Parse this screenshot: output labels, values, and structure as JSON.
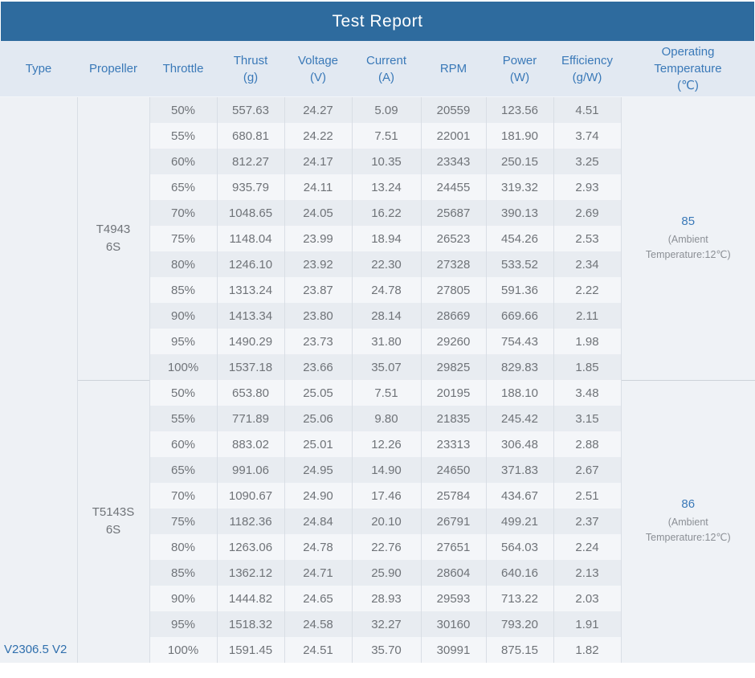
{
  "title": "Test Report",
  "version_label": "V2306.5 V2",
  "colors": {
    "title_bar_bg": "#2e6b9e",
    "header_bg": "#e2e9f2",
    "header_text": "#3a79b8",
    "row_dark": "#e8ecf1",
    "row_light": "#f4f6f9",
    "merged_cell_bg": "#eef1f5",
    "data_text": "#6f7378",
    "accent_blue": "#3a79b8",
    "note_text": "#8b8f95"
  },
  "columns": [
    {
      "id": "type",
      "lines": [
        "Type"
      ]
    },
    {
      "id": "propeller",
      "lines": [
        "Propeller"
      ]
    },
    {
      "id": "throttle",
      "lines": [
        "Throttle"
      ]
    },
    {
      "id": "thrust",
      "lines": [
        "Thrust",
        "(g)"
      ]
    },
    {
      "id": "voltage",
      "lines": [
        "Voltage",
        "(V)"
      ]
    },
    {
      "id": "current",
      "lines": [
        "Current",
        "(A)"
      ]
    },
    {
      "id": "rpm",
      "lines": [
        "RPM"
      ]
    },
    {
      "id": "power",
      "lines": [
        "Power",
        "(W)"
      ]
    },
    {
      "id": "efficiency",
      "lines": [
        "Efficiency",
        "(g/W)"
      ]
    },
    {
      "id": "operating-temperature",
      "lines": [
        "Operating",
        "Temperature",
        "(℃)"
      ]
    }
  ],
  "groups": [
    {
      "propeller": "T4943",
      "battery": "6S",
      "operating_temperature": "85",
      "ambient_note": "(Ambient Temperature:12℃)",
      "rows": [
        {
          "throttle": "50%",
          "thrust": "557.63",
          "voltage": "24.27",
          "current": "5.09",
          "rpm": "20559",
          "power": "123.56",
          "efficiency": "4.51"
        },
        {
          "throttle": "55%",
          "thrust": "680.81",
          "voltage": "24.22",
          "current": "7.51",
          "rpm": "22001",
          "power": "181.90",
          "efficiency": "3.74"
        },
        {
          "throttle": "60%",
          "thrust": "812.27",
          "voltage": "24.17",
          "current": "10.35",
          "rpm": "23343",
          "power": "250.15",
          "efficiency": "3.25"
        },
        {
          "throttle": "65%",
          "thrust": "935.79",
          "voltage": "24.11",
          "current": "13.24",
          "rpm": "24455",
          "power": "319.32",
          "efficiency": "2.93"
        },
        {
          "throttle": "70%",
          "thrust": "1048.65",
          "voltage": "24.05",
          "current": "16.22",
          "rpm": "25687",
          "power": "390.13",
          "efficiency": "2.69"
        },
        {
          "throttle": "75%",
          "thrust": "1148.04",
          "voltage": "23.99",
          "current": "18.94",
          "rpm": "26523",
          "power": "454.26",
          "efficiency": "2.53"
        },
        {
          "throttle": "80%",
          "thrust": "1246.10",
          "voltage": "23.92",
          "current": "22.30",
          "rpm": "27328",
          "power": "533.52",
          "efficiency": "2.34"
        },
        {
          "throttle": "85%",
          "thrust": "1313.24",
          "voltage": "23.87",
          "current": "24.78",
          "rpm": "27805",
          "power": "591.36",
          "efficiency": "2.22"
        },
        {
          "throttle": "90%",
          "thrust": "1413.34",
          "voltage": "23.80",
          "current": "28.14",
          "rpm": "28669",
          "power": "669.66",
          "efficiency": "2.11"
        },
        {
          "throttle": "95%",
          "thrust": "1490.29",
          "voltage": "23.73",
          "current": "31.80",
          "rpm": "29260",
          "power": "754.43",
          "efficiency": "1.98"
        },
        {
          "throttle": "100%",
          "thrust": "1537.18",
          "voltage": "23.66",
          "current": "35.07",
          "rpm": "29825",
          "power": "829.83",
          "efficiency": "1.85"
        }
      ]
    },
    {
      "propeller": "T5143S",
      "battery": "6S",
      "operating_temperature": "86",
      "ambient_note": "(Ambient Temperature:12℃)",
      "rows": [
        {
          "throttle": "50%",
          "thrust": "653.80",
          "voltage": "25.05",
          "current": "7.51",
          "rpm": "20195",
          "power": "188.10",
          "efficiency": "3.48"
        },
        {
          "throttle": "55%",
          "thrust": "771.89",
          "voltage": "25.06",
          "current": "9.80",
          "rpm": "21835",
          "power": "245.42",
          "efficiency": "3.15"
        },
        {
          "throttle": "60%",
          "thrust": "883.02",
          "voltage": "25.01",
          "current": "12.26",
          "rpm": "23313",
          "power": "306.48",
          "efficiency": "2.88"
        },
        {
          "throttle": "65%",
          "thrust": "991.06",
          "voltage": "24.95",
          "current": "14.90",
          "rpm": "24650",
          "power": "371.83",
          "efficiency": "2.67"
        },
        {
          "throttle": "70%",
          "thrust": "1090.67",
          "voltage": "24.90",
          "current": "17.46",
          "rpm": "25784",
          "power": "434.67",
          "efficiency": "2.51"
        },
        {
          "throttle": "75%",
          "thrust": "1182.36",
          "voltage": "24.84",
          "current": "20.10",
          "rpm": "26791",
          "power": "499.21",
          "efficiency": "2.37"
        },
        {
          "throttle": "80%",
          "thrust": "1263.06",
          "voltage": "24.78",
          "current": "22.76",
          "rpm": "27651",
          "power": "564.03",
          "efficiency": "2.24"
        },
        {
          "throttle": "85%",
          "thrust": "1362.12",
          "voltage": "24.71",
          "current": "25.90",
          "rpm": "28604",
          "power": "640.16",
          "efficiency": "2.13"
        },
        {
          "throttle": "90%",
          "thrust": "1444.82",
          "voltage": "24.65",
          "current": "28.93",
          "rpm": "29593",
          "power": "713.22",
          "efficiency": "2.03"
        },
        {
          "throttle": "95%",
          "thrust": "1518.32",
          "voltage": "24.58",
          "current": "32.27",
          "rpm": "30160",
          "power": "793.20",
          "efficiency": "1.91"
        },
        {
          "throttle": "100%",
          "thrust": "1591.45",
          "voltage": "24.51",
          "current": "35.70",
          "rpm": "30991",
          "power": "875.15",
          "efficiency": "1.82"
        }
      ]
    }
  ]
}
